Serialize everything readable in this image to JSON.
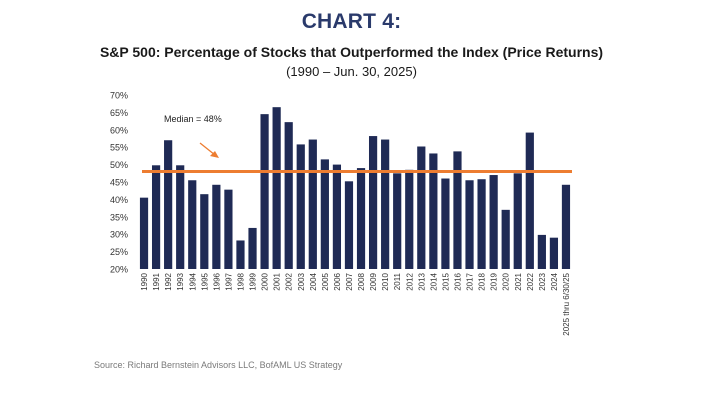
{
  "header": {
    "chart_number": "CHART 4:",
    "title": "S&P 500: Percentage of Stocks that Outperformed the Index (Price Returns)",
    "subtitle": "(1990 – Jun. 30, 2025)"
  },
  "source": "Source: Richard Bernstein Advisors LLC, BofAML US Strategy",
  "colors": {
    "bar": "#1f2a55",
    "median_line": "#ed7d31",
    "heading": "#2a3a6b"
  },
  "chart_data": {
    "type": "bar",
    "title": "S&P 500: Percentage of Stocks that Outperformed the Index (Price Returns)",
    "xlabel": "",
    "ylabel": "",
    "ylim": [
      20,
      70
    ],
    "yticks": [
      "20%",
      "25%",
      "30%",
      "35%",
      "40%",
      "45%",
      "50%",
      "55%",
      "60%",
      "65%",
      "70%"
    ],
    "grid": false,
    "categories": [
      "1990",
      "1991",
      "1992",
      "1993",
      "1994",
      "1995",
      "1996",
      "1997",
      "1998",
      "1999",
      "2000",
      "2001",
      "2002",
      "2003",
      "2004",
      "2005",
      "2006",
      "2007",
      "2008",
      "2009",
      "2010",
      "2011",
      "2012",
      "2013",
      "2014",
      "2015",
      "2016",
      "2017",
      "2018",
      "2019",
      "2020",
      "2021",
      "2022",
      "2023",
      "2024",
      "2025 thru 6/30/25"
    ],
    "values": [
      40.5,
      49.8,
      57,
      49.8,
      45.5,
      41.5,
      44.2,
      42.8,
      28.2,
      31.8,
      64.5,
      66.5,
      62.2,
      55.8,
      57.2,
      51.5,
      50,
      45.2,
      49,
      58.2,
      57.2,
      47.5,
      48.5,
      55.2,
      53.2,
      46,
      53.8,
      45.5,
      45.8,
      47,
      37,
      47.5,
      59.2,
      29.8,
      29,
      44.2
    ],
    "median": 48,
    "annotation": "Median = 48%"
  }
}
